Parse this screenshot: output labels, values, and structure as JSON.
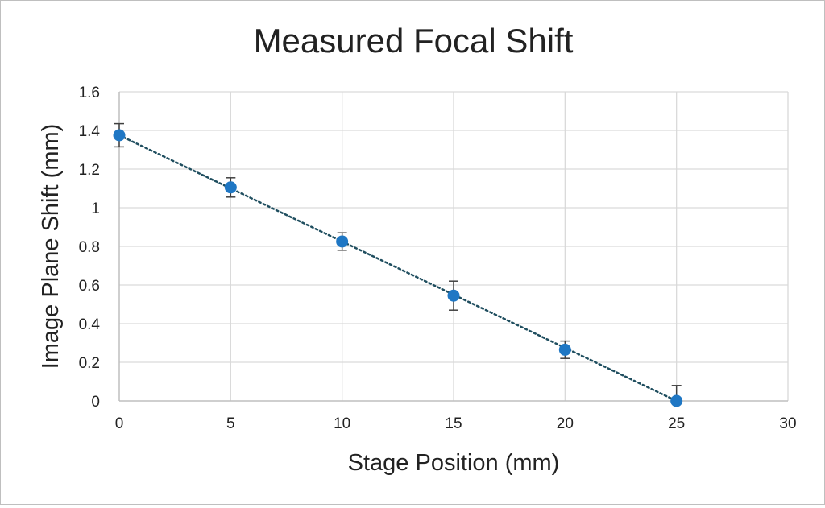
{
  "chart_data": {
    "type": "scatter",
    "title": "Measured Focal Shift",
    "xlabel": "Stage Position (mm)",
    "ylabel": "Image Plane Shift (mm)",
    "xlim": [
      0,
      30
    ],
    "ylim": [
      0,
      1.6
    ],
    "xticks": [
      0,
      5,
      10,
      15,
      20,
      25,
      30
    ],
    "yticks": [
      0,
      0.2,
      0.4,
      0.6,
      0.8,
      1,
      1.2,
      1.4,
      1.6
    ],
    "xtick_labels": [
      "0",
      "5",
      "10",
      "15",
      "20",
      "25",
      "30"
    ],
    "ytick_labels": [
      "0",
      "0.2",
      "0.4",
      "0.6",
      "0.8",
      "1",
      "1.2",
      "1.4",
      "1.6"
    ],
    "grid": true,
    "legend": "none",
    "series": [
      {
        "x": [
          0,
          5,
          10,
          15,
          20,
          25
        ],
        "y": [
          1.375,
          1.105,
          0.825,
          0.545,
          0.265,
          0.0
        ],
        "yerr": [
          0.06,
          0.05,
          0.045,
          0.075,
          0.045,
          0.08
        ],
        "color": "#1f77c4",
        "marker": "circle"
      }
    ],
    "trendline": {
      "style": "dotted",
      "color": "#1f4e5f",
      "x": [
        0,
        25
      ],
      "y": [
        1.375,
        0.0
      ]
    }
  }
}
